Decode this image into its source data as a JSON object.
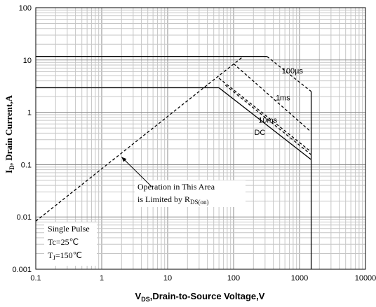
{
  "chart_data": {
    "type": "line",
    "x_scale": "log",
    "y_scale": "log",
    "xlim": [
      0.1,
      10000
    ],
    "ylim": [
      0.001,
      100
    ],
    "grid": true,
    "x_ticks": [
      {
        "value": 0.1,
        "label": "0.1"
      },
      {
        "value": 1,
        "label": "1"
      },
      {
        "value": 10,
        "label": "10"
      },
      {
        "value": 100,
        "label": "100"
      },
      {
        "value": 1000,
        "label": "1000"
      },
      {
        "value": 10000,
        "label": "10000"
      }
    ],
    "y_ticks": [
      {
        "value": 0.001,
        "label": "0.001"
      },
      {
        "value": 0.01,
        "label": "0.01"
      },
      {
        "value": 0.1,
        "label": "0.1"
      },
      {
        "value": 1,
        "label": "1"
      },
      {
        "value": 10,
        "label": "10"
      },
      {
        "value": 100,
        "label": "100"
      }
    ],
    "xlabel": {
      "main": "V",
      "sub": "DS",
      "rest": ",Drain-to-Source Voltage,V"
    },
    "ylabel": {
      "main": "I",
      "sub": "D",
      "rest": ", Drain Current,A"
    },
    "series": [
      {
        "name": "RDS(on) limit",
        "style": "dashed",
        "points": [
          [
            0.1,
            0.0083
          ],
          [
            140,
            11.7
          ]
        ]
      },
      {
        "name": "pulse current limit",
        "style": "solid",
        "points": [
          [
            0.1,
            11.7
          ],
          [
            320,
            11.7
          ]
        ]
      },
      {
        "name": "100µs",
        "style": "dashed",
        "points": [
          [
            320,
            11.7
          ],
          [
            1500,
            2.5
          ]
        ]
      },
      {
        "name": "100µs vertical",
        "style": "solid",
        "points": [
          [
            1500,
            2.5
          ],
          [
            1500,
            0.001
          ]
        ]
      },
      {
        "name": "1ms",
        "style": "dashed",
        "points": [
          [
            100,
            8.5
          ],
          [
            1500,
            0.42
          ]
        ]
      },
      {
        "name": "10ms",
        "style": "dashed",
        "points": [
          [
            60,
            4.5
          ],
          [
            1500,
            0.175
          ]
        ]
      },
      {
        "name": "10ms b",
        "style": "dashed",
        "points": [
          [
            75,
            3.3
          ],
          [
            1500,
            0.155
          ]
        ]
      },
      {
        "name": "DC current limit",
        "style": "solid",
        "points": [
          [
            0.1,
            2.95
          ],
          [
            60,
            2.95
          ]
        ]
      },
      {
        "name": "DC",
        "style": "solid",
        "points": [
          [
            60,
            2.95
          ],
          [
            1500,
            0.125
          ]
        ]
      }
    ],
    "curve_labels": [
      {
        "text": "100µs",
        "x": 780,
        "y": 5.5
      },
      {
        "text": "1ms",
        "x": 560,
        "y": 1.7
      },
      {
        "text": "10ms",
        "x": 330,
        "y": 0.63
      },
      {
        "text": "DC",
        "x": 250,
        "y": 0.37
      }
    ],
    "annotation": {
      "lines": [
        "Operation in This Area",
        "is Limited  by R"
      ],
      "sub": "DS(on)",
      "arrow_to": {
        "x": 2.0,
        "y": 0.14
      },
      "arrow_from": {
        "x": 5.7,
        "y": 0.038
      }
    },
    "conditions": [
      {
        "main": "Single Pulse",
        "sub": "",
        "rest": ""
      },
      {
        "main": "Tc=25",
        "sub": "",
        "rest": "℃"
      },
      {
        "main": "T",
        "sub": "J",
        "rest": "=150℃"
      }
    ]
  }
}
